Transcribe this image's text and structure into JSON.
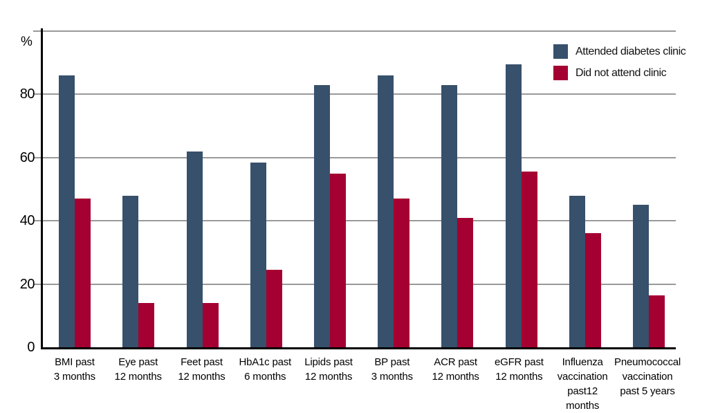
{
  "chart_data": {
    "type": "bar",
    "title": "",
    "ylabel": "%",
    "ylim": [
      0,
      100
    ],
    "ytick_labels": [
      "0",
      "20",
      "40",
      "60",
      "80"
    ],
    "yticks": [
      0,
      20,
      40,
      60,
      80
    ],
    "gridlines": [
      20,
      40,
      60,
      80,
      100
    ],
    "grid": true,
    "legend_position": "top-right",
    "colors": {
      "attended": "#37506B",
      "did_not_attend": "#A40031",
      "gridline": "#999999",
      "axis": "#000000"
    },
    "categories": [
      {
        "label": "BMI past\n3 months"
      },
      {
        "label": "Eye past\n12 months"
      },
      {
        "label": "Feet past\n12 months"
      },
      {
        "label": "HbA1c past\n6 months"
      },
      {
        "label": "Lipids past\n12 months"
      },
      {
        "label": "BP past\n3 months"
      },
      {
        "label": "ACR past\n12 months"
      },
      {
        "label": "eGFR past\n12 months"
      },
      {
        "label": "Influenza\nvaccination\npast12 months"
      },
      {
        "label": "Pneumococcal\nvaccination\npast 5 years"
      }
    ],
    "series": [
      {
        "name": "Attended diabetes clinic",
        "key": "attended",
        "values": [
          86,
          48,
          62,
          58.5,
          83,
          86,
          83,
          89.5,
          48,
          45
        ]
      },
      {
        "name": "Did not attend clinic",
        "key": "notattend",
        "values": [
          47,
          14,
          14,
          24.5,
          55,
          47,
          41,
          55.5,
          36,
          16.5
        ]
      }
    ]
  }
}
